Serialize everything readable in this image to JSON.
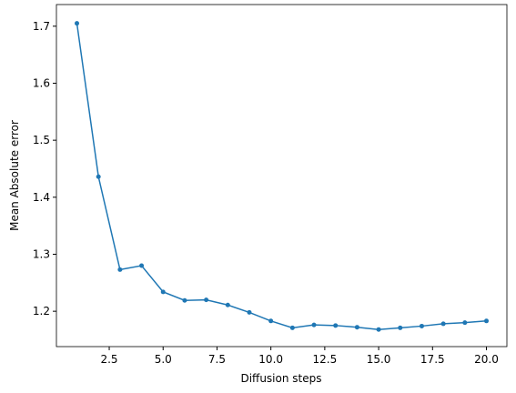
{
  "chart_data": {
    "type": "line",
    "xlabel": "Diffusion steps",
    "ylabel": "Mean Absolute error",
    "x": [
      1,
      2,
      3,
      4,
      5,
      6,
      7,
      8,
      9,
      10,
      11,
      12,
      13,
      14,
      15,
      16,
      17,
      18,
      19,
      20
    ],
    "series": [
      {
        "color": "#1f77b4",
        "values": [
          1.705,
          1.436,
          1.273,
          1.28,
          1.234,
          1.219,
          1.22,
          1.211,
          1.198,
          1.183,
          1.171,
          1.176,
          1.175,
          1.172,
          1.168,
          1.171,
          1.174,
          1.178,
          1.18,
          1.183
        ]
      }
    ],
    "xlim": [
      0.05,
      20.95
    ],
    "xticks": [
      {
        "value": 2.5,
        "label": "2.5"
      },
      {
        "value": 5,
        "label": "5.0"
      },
      {
        "value": 7.5,
        "label": "7.5"
      },
      {
        "value": 10,
        "label": "10.0"
      },
      {
        "value": 12.5,
        "label": "12.5"
      },
      {
        "value": 15,
        "label": "15.0"
      },
      {
        "value": 17.5,
        "label": "17.5"
      },
      {
        "value": 20,
        "label": "20.0"
      }
    ],
    "ylim": [
      1.138,
      1.738
    ],
    "yticks": [
      1.2,
      1.3,
      1.4,
      1.5,
      1.6,
      1.7
    ],
    "grid": false
  }
}
